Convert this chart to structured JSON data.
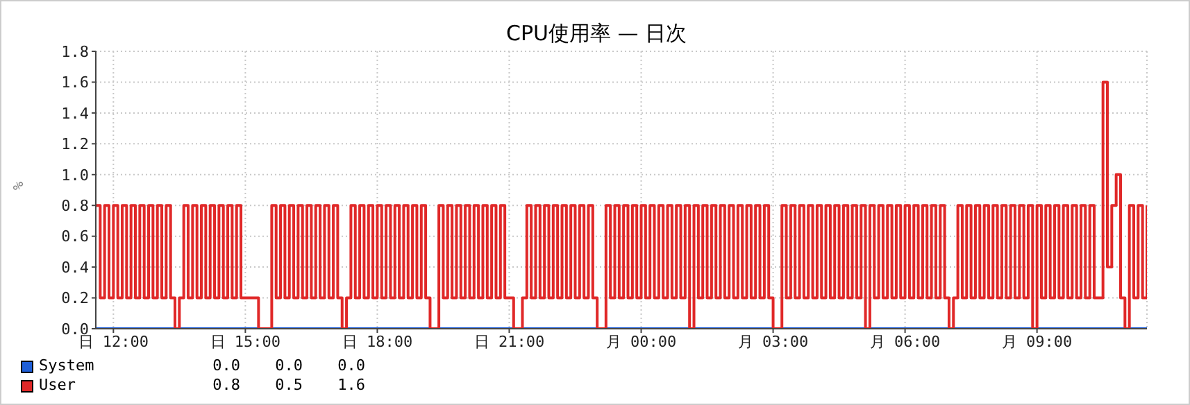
{
  "chart_data": {
    "type": "step",
    "title": "CPU使用率 — 日次",
    "ylabel": "%",
    "categories": [
      null,
      null,
      null,
      null,
      "日 12:00",
      null,
      null,
      null,
      null,
      null,
      null,
      null,
      null,
      null,
      null,
      null,
      null,
      null,
      null,
      null,
      null,
      null,
      null,
      null,
      null,
      null,
      null,
      null,
      null,
      null,
      null,
      null,
      null,
      null,
      "日 15:00",
      null,
      null,
      null,
      null,
      null,
      null,
      null,
      null,
      null,
      null,
      null,
      null,
      null,
      null,
      null,
      null,
      null,
      null,
      null,
      null,
      null,
      null,
      null,
      null,
      null,
      null,
      null,
      null,
      null,
      "日 18:00",
      null,
      null,
      null,
      null,
      null,
      null,
      null,
      null,
      null,
      null,
      null,
      null,
      null,
      null,
      null,
      null,
      null,
      null,
      null,
      null,
      null,
      null,
      null,
      null,
      null,
      null,
      null,
      null,
      null,
      "日 21:00",
      null,
      null,
      null,
      null,
      null,
      null,
      null,
      null,
      null,
      null,
      null,
      null,
      null,
      null,
      null,
      null,
      null,
      null,
      null,
      null,
      null,
      null,
      null,
      null,
      null,
      null,
      null,
      null,
      null,
      "月 00:00",
      null,
      null,
      null,
      null,
      null,
      null,
      null,
      null,
      null,
      null,
      null,
      null,
      null,
      null,
      null,
      null,
      null,
      null,
      null,
      null,
      null,
      null,
      null,
      null,
      null,
      null,
      null,
      null,
      null,
      "月 03:00",
      null,
      null,
      null,
      null,
      null,
      null,
      null,
      null,
      null,
      null,
      null,
      null,
      null,
      null,
      null,
      null,
      null,
      null,
      null,
      null,
      null,
      null,
      null,
      null,
      null,
      null,
      null,
      null,
      null,
      "月 06:00",
      null,
      null,
      null,
      null,
      null,
      null,
      null,
      null,
      null,
      null,
      null,
      null,
      null,
      null,
      null,
      null,
      null,
      null,
      null,
      null,
      null,
      null,
      null,
      null,
      null,
      null,
      null,
      null,
      null,
      "月 09:00",
      null,
      null,
      null,
      null,
      null,
      null,
      null,
      null,
      null,
      null,
      null,
      null,
      null,
      null,
      null,
      null,
      null,
      null,
      null,
      null,
      null,
      null,
      null,
      null,
      null
    ],
    "ylim": [
      0,
      1.8
    ],
    "yticks": [
      {
        "value": 0,
        "label": "0.0"
      },
      0.2,
      0.4,
      0.6,
      0.8,
      {
        "value": 1,
        "label": "1.0"
      },
      1.2,
      1.4,
      1.6,
      1.8
    ],
    "grid": true,
    "legend": "bottom left",
    "marker": "none",
    "annotations": [
      "0.0",
      "0.0",
      "0.0",
      "0.8",
      "0.5",
      "1.6"
    ],
    "series": [
      {
        "name": "System",
        "color": "#1f5fd8",
        "values": [
          0,
          0,
          0,
          0,
          0,
          0,
          0,
          0,
          0,
          0,
          0,
          0,
          0,
          0,
          0,
          0,
          0,
          0,
          0,
          0,
          0,
          0,
          0,
          0,
          0,
          0,
          0,
          0,
          0,
          0,
          0,
          0,
          0,
          0,
          0,
          0,
          0,
          0,
          0,
          0,
          0,
          0,
          0,
          0,
          0,
          0,
          0,
          0,
          0,
          0,
          0,
          0,
          0,
          0,
          0,
          0,
          0,
          0,
          0,
          0,
          0,
          0,
          0,
          0,
          0,
          0,
          0,
          0,
          0,
          0,
          0,
          0,
          0,
          0,
          0,
          0,
          0,
          0,
          0,
          0,
          0,
          0,
          0,
          0,
          0,
          0,
          0,
          0,
          0,
          0,
          0,
          0,
          0,
          0,
          0,
          0,
          0,
          0,
          0,
          0,
          0,
          0,
          0,
          0,
          0,
          0,
          0,
          0,
          0,
          0,
          0,
          0,
          0,
          0,
          0,
          0,
          0,
          0,
          0,
          0,
          0,
          0,
          0,
          0,
          0,
          0,
          0,
          0,
          0,
          0,
          0,
          0,
          0,
          0,
          0,
          0,
          0,
          0,
          0,
          0,
          0,
          0,
          0,
          0,
          0,
          0,
          0,
          0,
          0,
          0,
          0,
          0,
          0,
          0,
          0,
          0,
          0,
          0,
          0,
          0,
          0,
          0,
          0,
          0,
          0,
          0,
          0,
          0,
          0,
          0,
          0,
          0,
          0,
          0,
          0,
          0,
          0,
          0,
          0,
          0,
          0,
          0,
          0,
          0,
          0,
          0,
          0,
          0,
          0,
          0,
          0,
          0,
          0,
          0,
          0,
          0,
          0,
          0,
          0,
          0,
          0,
          0,
          0,
          0,
          0,
          0,
          0,
          0,
          0,
          0,
          0,
          0,
          0,
          0,
          0,
          0,
          0,
          0,
          0,
          0,
          0,
          0,
          0,
          0,
          0,
          0,
          0,
          0,
          0,
          0,
          0,
          0,
          0,
          0,
          0,
          0,
          0,
          0,
          0,
          0
        ]
      },
      {
        "name": "User",
        "color": "#e02828",
        "values": [
          0.8,
          0.2,
          0.8,
          0.2,
          0.8,
          0.2,
          0.8,
          0.2,
          0.8,
          0.2,
          0.8,
          0.2,
          0.8,
          0.2,
          0.8,
          0.2,
          0.8,
          0.2,
          0,
          0.2,
          0.8,
          0.2,
          0.8,
          0.2,
          0.8,
          0.2,
          0.8,
          0.2,
          0.8,
          0.2,
          0.8,
          0.2,
          0.8,
          0.2,
          0.2,
          0.2,
          0.2,
          0,
          0,
          0,
          0.8,
          0.2,
          0.8,
          0.2,
          0.8,
          0.2,
          0.8,
          0.2,
          0.8,
          0.2,
          0.8,
          0.2,
          0.8,
          0.2,
          0.8,
          0.2,
          0,
          0.2,
          0.8,
          0.2,
          0.8,
          0.2,
          0.8,
          0.2,
          0.8,
          0.2,
          0.8,
          0.2,
          0.8,
          0.2,
          0.8,
          0.2,
          0.8,
          0.2,
          0.8,
          0.2,
          0,
          0,
          0.8,
          0.2,
          0.8,
          0.2,
          0.8,
          0.2,
          0.8,
          0.2,
          0.8,
          0.2,
          0.8,
          0.2,
          0.8,
          0.2,
          0.8,
          0.2,
          0.2,
          0,
          0,
          0.2,
          0.8,
          0.2,
          0.8,
          0.2,
          0.8,
          0.2,
          0.8,
          0.2,
          0.8,
          0.2,
          0.8,
          0.2,
          0.8,
          0.2,
          0.8,
          0.2,
          0,
          0,
          0.8,
          0.2,
          0.8,
          0.2,
          0.8,
          0.2,
          0.8,
          0.2,
          0.8,
          0.2,
          0.8,
          0.2,
          0.8,
          0.2,
          0.8,
          0.2,
          0.8,
          0.2,
          0.8,
          0,
          0.8,
          0.2,
          0.8,
          0.2,
          0.8,
          0.2,
          0.8,
          0.2,
          0.8,
          0.2,
          0.8,
          0.2,
          0.8,
          0.2,
          0.8,
          0.2,
          0.8,
          0.2,
          0,
          0,
          0.8,
          0.2,
          0.8,
          0.2,
          0.8,
          0.2,
          0.8,
          0.2,
          0.8,
          0.2,
          0.8,
          0.2,
          0.8,
          0.2,
          0.8,
          0.2,
          0.8,
          0.2,
          0.8,
          0,
          0.8,
          0.2,
          0.8,
          0.2,
          0.8,
          0.2,
          0.8,
          0.2,
          0.8,
          0.2,
          0.8,
          0.2,
          0.8,
          0.2,
          0.8,
          0.2,
          0.8,
          0.2,
          0,
          0.2,
          0.8,
          0.2,
          0.8,
          0.2,
          0.8,
          0.2,
          0.8,
          0.2,
          0.8,
          0.2,
          0.8,
          0.2,
          0.8,
          0.2,
          0.8,
          0.2,
          0.8,
          0,
          0.8,
          0.2,
          0.8,
          0.2,
          0.8,
          0.2,
          0.8,
          0.2,
          0.8,
          0.2,
          0.8,
          0.2,
          0.8,
          0.2,
          0.2,
          1.6,
          0.4,
          0.8,
          1.0,
          0.2,
          0,
          0.8,
          0.2,
          0.8,
          0.2,
          0.8
        ]
      }
    ]
  }
}
